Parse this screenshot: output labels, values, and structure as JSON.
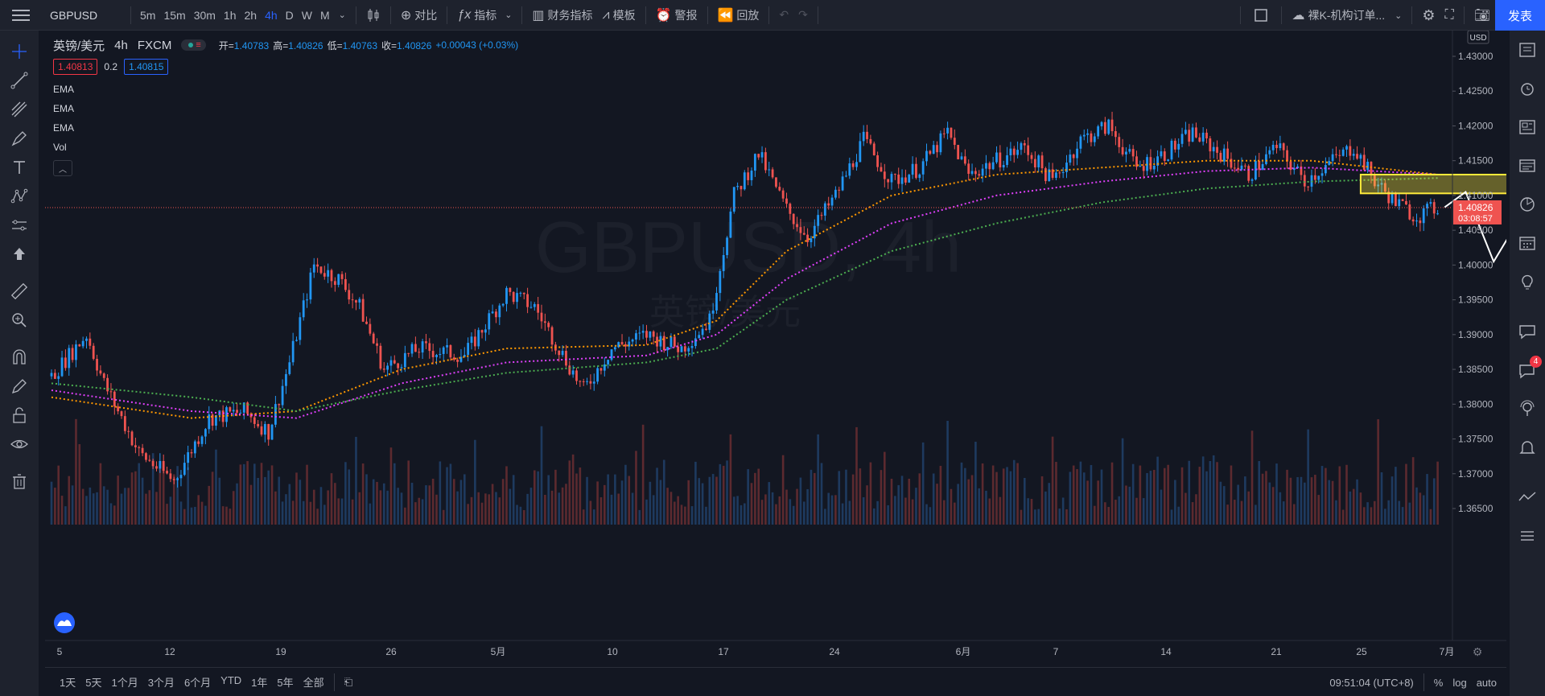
{
  "toolbar": {
    "symbol": "GBPUSD",
    "intervals": [
      "5m",
      "15m",
      "30m",
      "1h",
      "2h",
      "4h",
      "D",
      "W",
      "M"
    ],
    "active_interval": "4h",
    "compare_label": "对比",
    "indicators_label": "指标",
    "financials_label": "财务指标",
    "templates_label": "模板",
    "alert_label": "警报",
    "replay_label": "回放",
    "layout_label": "裸K-机构订单...",
    "publish_label": "发表"
  },
  "legend": {
    "title": "英镑/美元",
    "interval": "4h",
    "source": "FXCM",
    "open_label": "开=",
    "open": "1.40783",
    "high_label": "高=",
    "high": "1.40826",
    "low_label": "低=",
    "low": "1.40763",
    "close_label": "收=",
    "close": "1.40826",
    "change": "+0.00043 (+0.03%)",
    "bid": "1.40813",
    "spread": "0.2",
    "ask": "1.40815",
    "indicators": [
      "EMA",
      "EMA",
      "EMA",
      "Vol"
    ]
  },
  "watermark": {
    "line1": "GBPUSD, 4h",
    "line2": "英镑/美元"
  },
  "price_axis": {
    "currency": "USD",
    "last_price": "1.40826",
    "countdown": "03:08:57",
    "ticks": [
      "1.43000",
      "1.42500",
      "1.42000",
      "1.41500",
      "1.41000",
      "1.40500",
      "1.40000",
      "1.39500",
      "1.39000",
      "1.38500",
      "1.38000",
      "1.37500",
      "1.37000",
      "1.36500"
    ]
  },
  "time_axis": {
    "ticks": [
      "5",
      "12",
      "19",
      "26",
      "5月",
      "10",
      "17",
      "24",
      "6月",
      "7",
      "14",
      "21",
      "25",
      "7月"
    ]
  },
  "bottom": {
    "ranges": [
      "1天",
      "5天",
      "1个月",
      "3个月",
      "6个月",
      "YTD",
      "1年",
      "5年",
      "全部"
    ],
    "clock": "09:51:04 (UTC+8)",
    "percent_label": "%",
    "log_label": "log",
    "auto_label": "auto"
  },
  "right_bar": {
    "notification_count": "4"
  },
  "colors": {
    "up": "#2196f3",
    "down": "#ef5350",
    "ema_fast": "#ff9800",
    "ema_mid": "#e040fb",
    "ema_slow": "#4caf50",
    "zone": "#ffeb3b"
  },
  "chart_data": {
    "type": "candlestick",
    "symbol": "GBPUSD",
    "interval": "4h",
    "ylim": [
      1.363,
      1.432
    ],
    "x_ticks": [
      "5",
      "12",
      "19",
      "26",
      "5月",
      "10",
      "17",
      "24",
      "6月",
      "7",
      "14",
      "21",
      "25",
      "7月"
    ],
    "price_path": [
      [
        0,
        1.384
      ],
      [
        10,
        1.39
      ],
      [
        15,
        1.383
      ],
      [
        25,
        1.373
      ],
      [
        35,
        1.369
      ],
      [
        45,
        1.378
      ],
      [
        55,
        1.379
      ],
      [
        62,
        1.376
      ],
      [
        68,
        1.386
      ],
      [
        75,
        1.4
      ],
      [
        82,
        1.398
      ],
      [
        88,
        1.394
      ],
      [
        95,
        1.385
      ],
      [
        105,
        1.388
      ],
      [
        118,
        1.387
      ],
      [
        130,
        1.396
      ],
      [
        138,
        1.394
      ],
      [
        145,
        1.388
      ],
      [
        152,
        1.382
      ],
      [
        160,
        1.388
      ],
      [
        170,
        1.39
      ],
      [
        180,
        1.388
      ],
      [
        188,
        1.392
      ],
      [
        195,
        1.41
      ],
      [
        202,
        1.416
      ],
      [
        210,
        1.408
      ],
      [
        216,
        1.404
      ],
      [
        224,
        1.41
      ],
      [
        232,
        1.418
      ],
      [
        240,
        1.412
      ],
      [
        248,
        1.414
      ],
      [
        256,
        1.419
      ],
      [
        262,
        1.413
      ],
      [
        270,
        1.415
      ],
      [
        278,
        1.417
      ],
      [
        286,
        1.412
      ],
      [
        294,
        1.418
      ],
      [
        302,
        1.42
      ],
      [
        310,
        1.414
      ],
      [
        318,
        1.416
      ],
      [
        326,
        1.419
      ],
      [
        334,
        1.416
      ],
      [
        342,
        1.413
      ],
      [
        350,
        1.417
      ],
      [
        358,
        1.412
      ],
      [
        366,
        1.415
      ],
      [
        372,
        1.417
      ],
      [
        378,
        1.412
      ],
      [
        384,
        1.409
      ],
      [
        390,
        1.407
      ],
      [
        396,
        1.4083
      ]
    ],
    "ema_fast": [
      [
        0,
        1.381
      ],
      [
        40,
        1.378
      ],
      [
        70,
        1.379
      ],
      [
        100,
        1.385
      ],
      [
        130,
        1.388
      ],
      [
        170,
        1.3885
      ],
      [
        190,
        1.392
      ],
      [
        210,
        1.402
      ],
      [
        240,
        1.41
      ],
      [
        270,
        1.413
      ],
      [
        300,
        1.414
      ],
      [
        330,
        1.415
      ],
      [
        360,
        1.415
      ],
      [
        396,
        1.413
      ]
    ],
    "ema_mid": [
      [
        0,
        1.382
      ],
      [
        40,
        1.379
      ],
      [
        70,
        1.378
      ],
      [
        100,
        1.383
      ],
      [
        130,
        1.386
      ],
      [
        170,
        1.387
      ],
      [
        190,
        1.39
      ],
      [
        210,
        1.398
      ],
      [
        240,
        1.406
      ],
      [
        270,
        1.41
      ],
      [
        300,
        1.412
      ],
      [
        330,
        1.4135
      ],
      [
        360,
        1.414
      ],
      [
        396,
        1.413
      ]
    ],
    "ema_slow": [
      [
        0,
        1.383
      ],
      [
        40,
        1.381
      ],
      [
        70,
        1.379
      ],
      [
        100,
        1.382
      ],
      [
        130,
        1.3845
      ],
      [
        170,
        1.386
      ],
      [
        190,
        1.388
      ],
      [
        210,
        1.395
      ],
      [
        240,
        1.402
      ],
      [
        270,
        1.406
      ],
      [
        300,
        1.409
      ],
      [
        330,
        1.411
      ],
      [
        360,
        1.412
      ],
      [
        396,
        1.4125
      ]
    ],
    "annotations": {
      "zone": {
        "x_from": 374,
        "x_to": 420,
        "y_from": 1.4103,
        "y_to": 1.413
      },
      "projection": [
        [
          398,
          1.4083
        ],
        [
          404,
          1.4105
        ],
        [
          412,
          1.4005
        ],
        [
          421,
          1.408
        ],
        [
          443,
          1.385
        ]
      ],
      "last_price_line": 1.40826
    }
  }
}
